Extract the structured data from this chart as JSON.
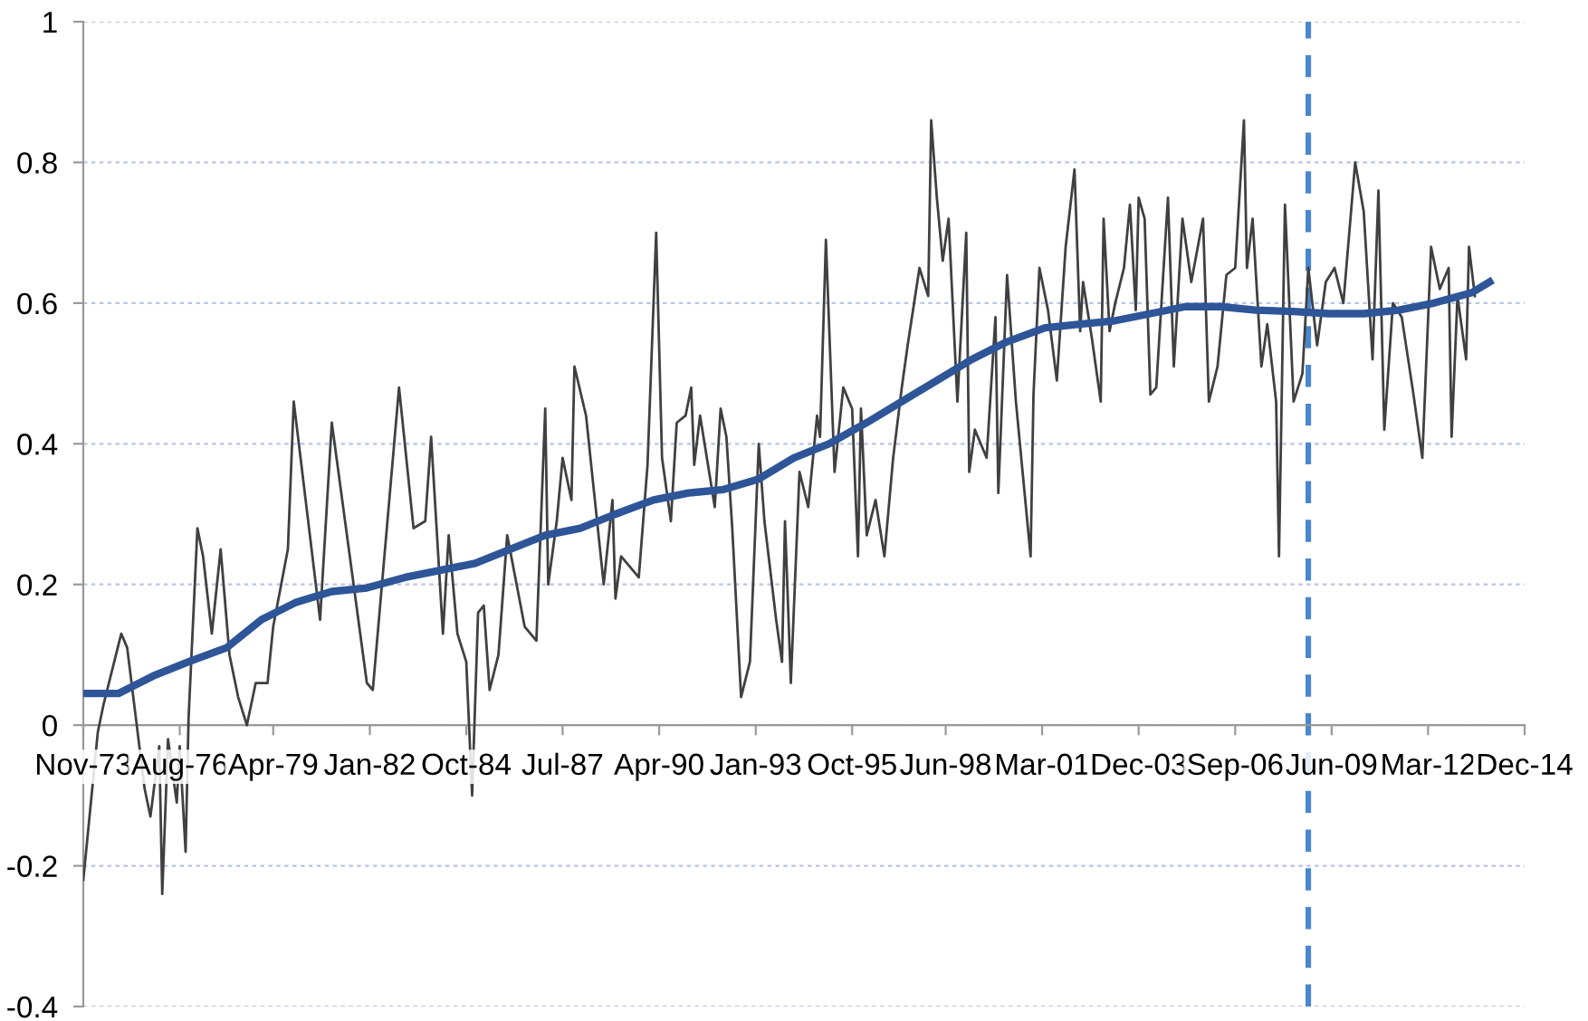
{
  "chart_data": {
    "type": "line",
    "xlim": [
      "1973-11",
      "2014-12"
    ],
    "xticks": [
      {
        "value": "1973-11",
        "label": "Nov-73"
      },
      {
        "value": "1976-08",
        "label": "Aug-76"
      },
      {
        "value": "1979-04",
        "label": "Apr-79"
      },
      {
        "value": "1982-01",
        "label": "Jan-82"
      },
      {
        "value": "1984-10",
        "label": "Oct-84"
      },
      {
        "value": "1987-07",
        "label": "Jul-87"
      },
      {
        "value": "1990-04",
        "label": "Apr-90"
      },
      {
        "value": "1993-01",
        "label": "Jan-93"
      },
      {
        "value": "1995-10",
        "label": "Oct-95"
      },
      {
        "value": "1998-06",
        "label": "Jun-98"
      },
      {
        "value": "2001-03",
        "label": "Mar-01"
      },
      {
        "value": "2003-12",
        "label": "Dec-03"
      },
      {
        "value": "2006-09",
        "label": "Sep-06"
      },
      {
        "value": "2009-06",
        "label": "Jun-09"
      },
      {
        "value": "2012-03",
        "label": "Mar-12"
      },
      {
        "value": "2014-12",
        "label": "Dec-14"
      }
    ],
    "ylim": [
      -0.4,
      1
    ],
    "yticks": [
      -0.4,
      -0.2,
      0,
      0.2,
      0.4,
      0.6,
      0.8,
      1
    ],
    "grid": "y",
    "ref_lines": [
      {
        "axis": "x",
        "value": "2008-10",
        "color": "#4a86d0",
        "line_style": "dashed"
      }
    ],
    "series": [
      {
        "color": "#404040",
        "x": [
          "1973-11",
          "1974-04",
          "1974-06",
          "1974-12",
          "1975-02",
          "1975-08",
          "1975-10",
          "1976-01",
          "1976-02",
          "1976-04",
          "1976-07",
          "1976-08",
          "1976-10",
          "1976-11",
          "1977-02",
          "1977-04",
          "1977-07",
          "1977-10",
          "1978-01",
          "1978-04",
          "1978-07",
          "1978-10",
          "1979-02",
          "1979-04",
          "1979-09",
          "1979-11",
          "1980-08",
          "1980-12",
          "1981-12",
          "1982-02",
          "1982-11",
          "1983-04",
          "1983-08",
          "1983-10",
          "1984-02",
          "1984-04",
          "1984-07",
          "1984-10",
          "1984-12",
          "1985-02",
          "1985-04",
          "1985-06",
          "1985-09",
          "1985-12",
          "1986-06",
          "1986-10",
          "1987-01",
          "1987-02",
          "1987-05",
          "1987-07",
          "1987-10",
          "1987-11",
          "1988-03",
          "1988-05",
          "1988-09",
          "1988-12",
          "1989-01",
          "1989-03",
          "1989-09",
          "1989-12",
          "1990-03",
          "1990-05",
          "1990-08",
          "1990-10",
          "1991-01",
          "1991-03",
          "1991-04",
          "1991-06",
          "1991-11",
          "1992-01",
          "1992-03",
          "1992-05",
          "1992-08",
          "1992-11",
          "1993-02",
          "1993-04",
          "1993-08",
          "1993-10",
          "1993-11",
          "1994-01",
          "1994-04",
          "1994-07",
          "1994-10",
          "1994-11",
          "1995-01",
          "1995-04",
          "1995-07",
          "1995-10",
          "1995-12",
          "1996-01",
          "1996-03",
          "1996-06",
          "1996-09",
          "1996-12",
          "1997-03",
          "1997-05",
          "1997-09",
          "1997-12",
          "1998-01",
          "1998-03",
          "1998-05",
          "1998-07",
          "1998-10",
          "1999-01",
          "1999-02",
          "1999-04",
          "1999-08",
          "1999-11",
          "1999-12",
          "2000-03",
          "2000-06",
          "2000-11",
          "2000-12",
          "2001-02",
          "2001-05",
          "2001-08",
          "2001-11",
          "2002-02",
          "2002-04",
          "2002-05",
          "2002-08",
          "2002-11",
          "2002-12",
          "2003-02",
          "2003-04",
          "2003-07",
          "2003-09",
          "2003-11",
          "2003-12",
          "2004-02",
          "2004-04",
          "2004-06",
          "2004-10",
          "2004-12",
          "2005-03",
          "2005-06",
          "2005-10",
          "2005-12",
          "2006-03",
          "2006-06",
          "2006-09",
          "2006-12",
          "2007-01",
          "2007-03",
          "2007-06",
          "2007-08",
          "2007-11",
          "2007-12",
          "2008-02",
          "2008-05",
          "2008-08",
          "2008-10",
          "2009-01",
          "2009-04",
          "2009-07",
          "2009-10",
          "2010-02",
          "2010-05",
          "2010-08",
          "2010-10",
          "2010-12",
          "2011-03",
          "2011-06",
          "2011-10",
          "2012-01",
          "2012-04",
          "2012-07",
          "2012-10",
          "2012-11",
          "2013-01",
          "2013-04",
          "2013-05",
          "2013-07"
        ],
        "values": [
          -0.22,
          -0.01,
          0.03,
          0.13,
          0.11,
          -0.09,
          -0.13,
          -0.03,
          -0.24,
          -0.02,
          -0.11,
          -0.03,
          -0.18,
          0.01,
          0.28,
          0.24,
          0.13,
          0.25,
          0.1,
          0.04,
          0.0,
          0.06,
          0.06,
          0.14,
          0.25,
          0.46,
          0.15,
          0.43,
          0.06,
          0.05,
          0.48,
          0.28,
          0.29,
          0.41,
          0.13,
          0.27,
          0.13,
          0.09,
          -0.1,
          0.16,
          0.17,
          0.05,
          0.1,
          0.27,
          0.14,
          0.12,
          0.45,
          0.2,
          0.29,
          0.38,
          0.32,
          0.51,
          0.44,
          0.36,
          0.2,
          0.32,
          0.18,
          0.24,
          0.21,
          0.37,
          0.7,
          0.38,
          0.29,
          0.43,
          0.44,
          0.48,
          0.37,
          0.44,
          0.31,
          0.45,
          0.41,
          0.28,
          0.04,
          0.09,
          0.4,
          0.29,
          0.15,
          0.09,
          0.29,
          0.06,
          0.36,
          0.31,
          0.44,
          0.41,
          0.69,
          0.36,
          0.48,
          0.45,
          0.24,
          0.45,
          0.27,
          0.32,
          0.24,
          0.38,
          0.48,
          0.54,
          0.65,
          0.61,
          0.86,
          0.75,
          0.66,
          0.72,
          0.46,
          0.7,
          0.36,
          0.42,
          0.38,
          0.58,
          0.33,
          0.64,
          0.46,
          0.24,
          0.47,
          0.65,
          0.59,
          0.49,
          0.68,
          0.79,
          0.56,
          0.63,
          0.55,
          0.46,
          0.72,
          0.56,
          0.6,
          0.65,
          0.74,
          0.59,
          0.75,
          0.72,
          0.47,
          0.48,
          0.75,
          0.51,
          0.72,
          0.63,
          0.72,
          0.46,
          0.51,
          0.64,
          0.65,
          0.86,
          0.65,
          0.72,
          0.51,
          0.57,
          0.46,
          0.24,
          0.74,
          0.46,
          0.5,
          0.65,
          0.54,
          0.63,
          0.65,
          0.6,
          0.8,
          0.73,
          0.52,
          0.76,
          0.42,
          0.6,
          0.58,
          0.47,
          0.38,
          0.68,
          0.62,
          0.65,
          0.41,
          0.61,
          0.52,
          0.68,
          0.61
        ]
      },
      {
        "color": "#2e5597",
        "x": [
          "1973-11",
          "1974-11",
          "1975-11",
          "1976-11",
          "1977-12",
          "1978-12",
          "1979-12",
          "1980-12",
          "1981-12",
          "1983-01",
          "1984-01",
          "1985-01",
          "1986-01",
          "1987-01",
          "1988-01",
          "1989-01",
          "1990-02",
          "1991-02",
          "1992-02",
          "1993-02",
          "1994-02",
          "1995-02",
          "1996-03",
          "1997-03",
          "1998-03",
          "1999-03",
          "2000-03",
          "2001-04",
          "2002-04",
          "2003-04",
          "2004-04",
          "2005-04",
          "2006-04",
          "2007-04",
          "2008-05",
          "2009-05",
          "2010-05",
          "2011-05",
          "2012-05",
          "2013-06",
          "2013-12"
        ],
        "values": [
          0.045,
          0.045,
          0.07,
          0.09,
          0.11,
          0.15,
          0.175,
          0.19,
          0.195,
          0.21,
          0.22,
          0.23,
          0.25,
          0.27,
          0.28,
          0.3,
          0.32,
          0.33,
          0.335,
          0.35,
          0.38,
          0.4,
          0.43,
          0.46,
          0.49,
          0.52,
          0.545,
          0.565,
          0.57,
          0.575,
          0.585,
          0.595,
          0.595,
          0.59,
          0.588,
          0.585,
          0.585,
          0.59,
          0.6,
          0.615,
          0.63
        ]
      }
    ]
  }
}
